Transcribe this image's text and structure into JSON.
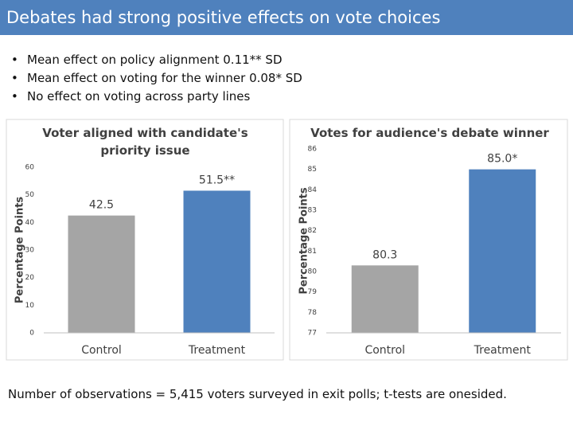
{
  "title": "Debates had strong positive effects on vote choices",
  "bullets": [
    "Mean effect on policy alignment 0.11** SD",
    "Mean effect on voting for the winner 0.08* SD",
    "No effect on voting across party lines"
  ],
  "footnote": "Number of observations = 5,415 voters surveyed in exit polls; t-tests are onesided.",
  "chart_data": [
    {
      "type": "bar",
      "title": "Voter aligned with candidate's priority issue",
      "y_label": "Percentage Points",
      "categories": [
        "Control",
        "Treatment"
      ],
      "values": [
        42.5,
        51.5
      ],
      "value_labels": [
        "42.5",
        "51.5**"
      ],
      "colors": [
        "#a5a5a5",
        "#4f81bd"
      ],
      "ylim": [
        0,
        60
      ],
      "yticks": [
        0,
        10,
        20,
        30,
        40,
        50,
        60
      ],
      "grid": false
    },
    {
      "type": "bar",
      "title": "Votes for audience's debate winner",
      "y_label": "Percentage Points",
      "categories": [
        "Control",
        "Treatment"
      ],
      "values": [
        80.3,
        85.0
      ],
      "value_labels": [
        "80.3",
        "85.0*"
      ],
      "colors": [
        "#a5a5a5",
        "#4f81bd"
      ],
      "ylim": [
        77,
        86
      ],
      "yticks": [
        77,
        78,
        79,
        80,
        81,
        82,
        83,
        84,
        85,
        86
      ],
      "grid": false
    }
  ]
}
